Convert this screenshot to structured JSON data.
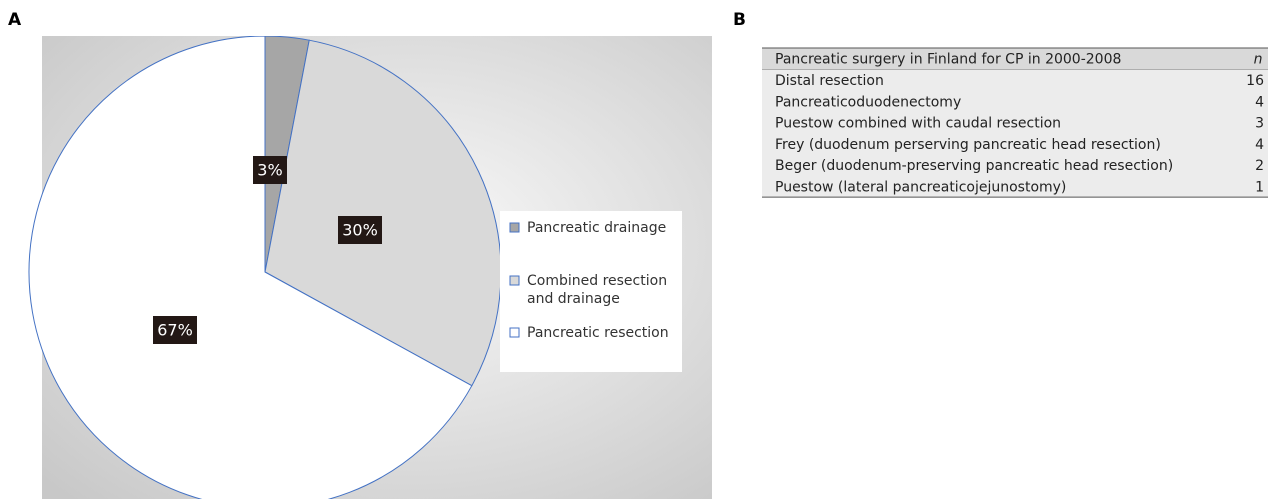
{
  "panel_labels": [
    "A",
    "B"
  ],
  "chart_data": {
    "type": "pie",
    "categories": [
      "Pancreatic drainage",
      "Combined resection and drainage",
      "Pancreatic resection"
    ],
    "values": [
      3,
      30,
      67
    ],
    "value_labels": [
      "3%",
      "30%",
      "67%"
    ],
    "colors": [
      "#a6a6a6",
      "#d9d9d9",
      "#ffffff"
    ],
    "legend": "right"
  },
  "table": {
    "header": [
      "Pancreatic surgery in Finland for CP in 2000-2008",
      "n"
    ],
    "rows": [
      [
        "Distal resection",
        16
      ],
      [
        "Pancreaticoduodenectomy",
        4
      ],
      [
        "Puestow combined with caudal resection",
        3
      ],
      [
        "Frey (duodenum perserving pancreatic head resection)",
        4
      ],
      [
        "Beger (duodenum-preserving pancreatic head resection)",
        2
      ],
      [
        "Puestow (lateral pancreaticojejunostomy)",
        1
      ]
    ]
  }
}
